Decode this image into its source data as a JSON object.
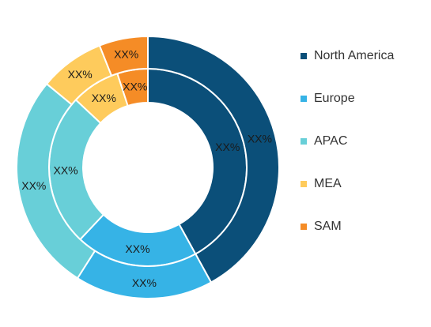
{
  "chart_data": {
    "type": "pie",
    "title": "",
    "categories": [
      "North America",
      "Europe",
      "APAC",
      "MEA",
      "SAM"
    ],
    "colors": [
      "#0b4f79",
      "#36b3e6",
      "#68cfd8",
      "#fecb5c",
      "#f58c26"
    ],
    "legend_position": "right",
    "series": [
      {
        "values": [
          42,
          20,
          25,
          8,
          5
        ],
        "labels": [
          "XX%",
          "XX%",
          "XX%",
          "XX%",
          "XX%"
        ]
      },
      {
        "values": [
          42,
          17,
          27,
          8,
          6
        ],
        "labels": [
          "XX%",
          "XX%",
          "XX%",
          "XX%",
          "XX%"
        ]
      }
    ]
  }
}
